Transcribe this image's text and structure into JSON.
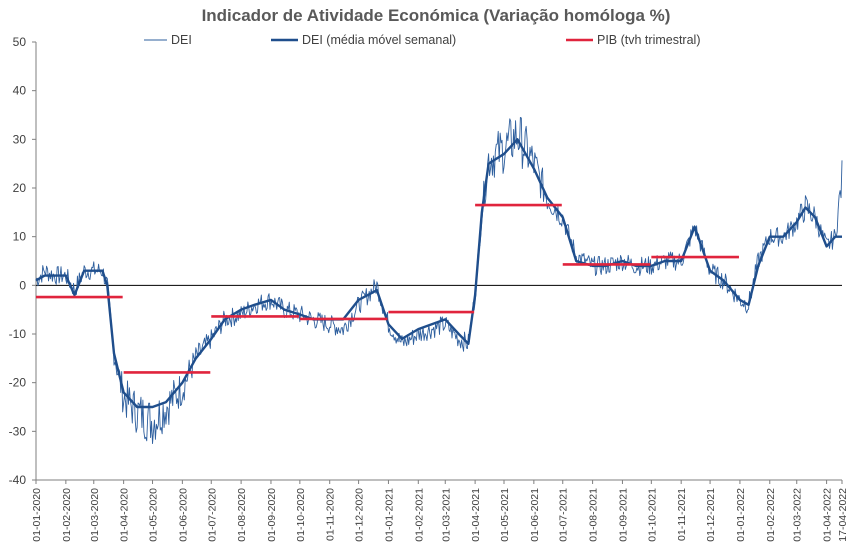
{
  "chart_data": {
    "type": "line",
    "title": "Indicador de Atividade Económica (Variação homóloga %)",
    "xlabel": "",
    "ylabel": "",
    "ylim": [
      -40,
      50
    ],
    "yticks": [
      50,
      40,
      30,
      20,
      10,
      0,
      -10,
      -20,
      -30,
      -40
    ],
    "x_range": [
      "2020-01-01",
      "2022-04-17"
    ],
    "xtick_labels": [
      "01-01-2020",
      "01-02-2020",
      "01-03-2020",
      "01-04-2020",
      "01-05-2020",
      "01-06-2020",
      "01-07-2020",
      "01-08-2020",
      "01-09-2020",
      "01-10-2020",
      "01-11-2020",
      "01-12-2020",
      "01-01-2021",
      "01-02-2021",
      "01-03-2021",
      "01-04-2021",
      "01-05-2021",
      "01-06-2021",
      "01-07-2021",
      "01-08-2021",
      "01-09-2021",
      "01-10-2021",
      "01-11-2021",
      "01-12-2021",
      "01-01-2022",
      "01-02-2022",
      "01-03-2022",
      "01-04-2022",
      "17-04-2022"
    ],
    "grid": false,
    "legend_position": "top",
    "colors": {
      "dei": "#2e5f9e",
      "dei_ma": "#1f4e8c",
      "pib": "#e0243d",
      "axis": "#7f7f7f"
    },
    "series": [
      {
        "name": "DEI",
        "kind": "daily",
        "values": [
          [
            "2020-01-01",
            1
          ],
          [
            "2020-01-10",
            3
          ],
          [
            "2020-01-20",
            2
          ],
          [
            "2020-02-01",
            2
          ],
          [
            "2020-02-10",
            -1
          ],
          [
            "2020-02-20",
            3
          ],
          [
            "2020-03-01",
            3
          ],
          [
            "2020-03-10",
            3
          ],
          [
            "2020-03-15",
            0
          ],
          [
            "2020-03-22",
            -14
          ],
          [
            "2020-04-01",
            -23
          ],
          [
            "2020-04-15",
            -26
          ],
          [
            "2020-05-01",
            -28
          ],
          [
            "2020-05-15",
            -25
          ],
          [
            "2020-06-01",
            -21
          ],
          [
            "2020-06-15",
            -15
          ],
          [
            "2020-07-01",
            -11
          ],
          [
            "2020-07-15",
            -7
          ],
          [
            "2020-08-01",
            -6
          ],
          [
            "2020-08-15",
            -4
          ],
          [
            "2020-09-01",
            -3
          ],
          [
            "2020-09-15",
            -5
          ],
          [
            "2020-10-01",
            -6
          ],
          [
            "2020-10-15",
            -7
          ],
          [
            "2020-11-01",
            -8
          ],
          [
            "2020-11-15",
            -9
          ],
          [
            "2020-12-01",
            -4
          ],
          [
            "2020-12-20",
            0
          ],
          [
            "2021-01-01",
            -8
          ],
          [
            "2021-01-15",
            -12
          ],
          [
            "2021-02-01",
            -10
          ],
          [
            "2021-02-15",
            -9
          ],
          [
            "2021-03-01",
            -8
          ],
          [
            "2021-03-15",
            -11
          ],
          [
            "2021-03-25",
            -12
          ],
          [
            "2021-04-01",
            -2
          ],
          [
            "2021-04-08",
            15
          ],
          [
            "2021-04-15",
            26
          ],
          [
            "2021-05-01",
            28
          ],
          [
            "2021-05-15",
            31
          ],
          [
            "2021-06-01",
            25
          ],
          [
            "2021-06-15",
            18
          ],
          [
            "2021-07-01",
            14
          ],
          [
            "2021-07-15",
            6
          ],
          [
            "2021-08-01",
            4
          ],
          [
            "2021-08-15",
            4
          ],
          [
            "2021-09-01",
            5
          ],
          [
            "2021-09-15",
            4
          ],
          [
            "2021-10-01",
            4
          ],
          [
            "2021-10-15",
            5
          ],
          [
            "2021-11-01",
            5
          ],
          [
            "2021-11-15",
            12
          ],
          [
            "2021-12-01",
            3
          ],
          [
            "2021-12-15",
            1
          ],
          [
            "2022-01-01",
            -3
          ],
          [
            "2022-01-10",
            -4
          ],
          [
            "2022-01-20",
            5
          ],
          [
            "2022-02-01",
            10
          ],
          [
            "2022-02-15",
            10
          ],
          [
            "2022-03-01",
            13
          ],
          [
            "2022-03-10",
            16
          ],
          [
            "2022-03-20",
            14
          ],
          [
            "2022-04-01",
            8
          ],
          [
            "2022-04-10",
            10
          ],
          [
            "2022-04-17",
            22
          ]
        ]
      },
      {
        "name": "DEI (média móvel semanal)",
        "kind": "smooth",
        "values": [
          [
            "2020-01-01",
            1
          ],
          [
            "2020-01-10",
            2
          ],
          [
            "2020-01-20",
            2
          ],
          [
            "2020-02-01",
            2
          ],
          [
            "2020-02-10",
            -2
          ],
          [
            "2020-02-20",
            3
          ],
          [
            "2020-03-01",
            3
          ],
          [
            "2020-03-10",
            3
          ],
          [
            "2020-03-15",
            0
          ],
          [
            "2020-03-22",
            -14
          ],
          [
            "2020-04-01",
            -22
          ],
          [
            "2020-04-15",
            -25
          ],
          [
            "2020-05-01",
            -25
          ],
          [
            "2020-05-15",
            -24
          ],
          [
            "2020-06-01",
            -20
          ],
          [
            "2020-06-15",
            -15
          ],
          [
            "2020-07-01",
            -11
          ],
          [
            "2020-07-15",
            -7
          ],
          [
            "2020-08-01",
            -5
          ],
          [
            "2020-08-15",
            -4
          ],
          [
            "2020-09-01",
            -3
          ],
          [
            "2020-09-15",
            -5
          ],
          [
            "2020-10-01",
            -6
          ],
          [
            "2020-10-15",
            -7
          ],
          [
            "2020-11-01",
            -7
          ],
          [
            "2020-11-15",
            -7
          ],
          [
            "2020-12-01",
            -3
          ],
          [
            "2020-12-20",
            -1
          ],
          [
            "2021-01-01",
            -8
          ],
          [
            "2021-01-15",
            -11
          ],
          [
            "2021-02-01",
            -9
          ],
          [
            "2021-02-15",
            -8
          ],
          [
            "2021-03-01",
            -7
          ],
          [
            "2021-03-15",
            -10
          ],
          [
            "2021-03-25",
            -12
          ],
          [
            "2021-04-01",
            -2
          ],
          [
            "2021-04-08",
            15
          ],
          [
            "2021-04-15",
            25
          ],
          [
            "2021-05-01",
            27
          ],
          [
            "2021-05-15",
            30
          ],
          [
            "2021-06-01",
            24
          ],
          [
            "2021-06-15",
            18
          ],
          [
            "2021-07-01",
            14
          ],
          [
            "2021-07-15",
            5
          ],
          [
            "2021-08-01",
            4
          ],
          [
            "2021-08-15",
            4
          ],
          [
            "2021-09-01",
            5
          ],
          [
            "2021-09-15",
            4
          ],
          [
            "2021-10-01",
            4
          ],
          [
            "2021-10-15",
            5
          ],
          [
            "2021-11-01",
            5
          ],
          [
            "2021-11-15",
            12
          ],
          [
            "2021-12-01",
            3
          ],
          [
            "2021-12-15",
            1
          ],
          [
            "2022-01-01",
            -3
          ],
          [
            "2022-01-10",
            -4
          ],
          [
            "2022-01-20",
            4
          ],
          [
            "2022-02-01",
            10
          ],
          [
            "2022-02-15",
            10
          ],
          [
            "2022-03-01",
            13
          ],
          [
            "2022-03-10",
            16
          ],
          [
            "2022-03-20",
            14
          ],
          [
            "2022-04-01",
            8
          ],
          [
            "2022-04-10",
            10
          ],
          [
            "2022-04-17",
            10
          ]
        ]
      },
      {
        "name": "PIB (tvh trimestral)",
        "kind": "step",
        "segments": [
          {
            "from": "2020-01-01",
            "to": "2020-03-31",
            "value": -2.4
          },
          {
            "from": "2020-04-01",
            "to": "2020-06-30",
            "value": -17.9
          },
          {
            "from": "2020-07-01",
            "to": "2020-09-30",
            "value": -6.4
          },
          {
            "from": "2020-10-01",
            "to": "2020-12-31",
            "value": -6.9
          },
          {
            "from": "2021-01-01",
            "to": "2021-03-31",
            "value": -5.5
          },
          {
            "from": "2021-04-01",
            "to": "2021-06-30",
            "value": 16.5
          },
          {
            "from": "2021-07-01",
            "to": "2021-09-30",
            "value": 4.3
          },
          {
            "from": "2021-10-01",
            "to": "2021-12-31",
            "value": 5.8
          }
        ]
      }
    ]
  }
}
